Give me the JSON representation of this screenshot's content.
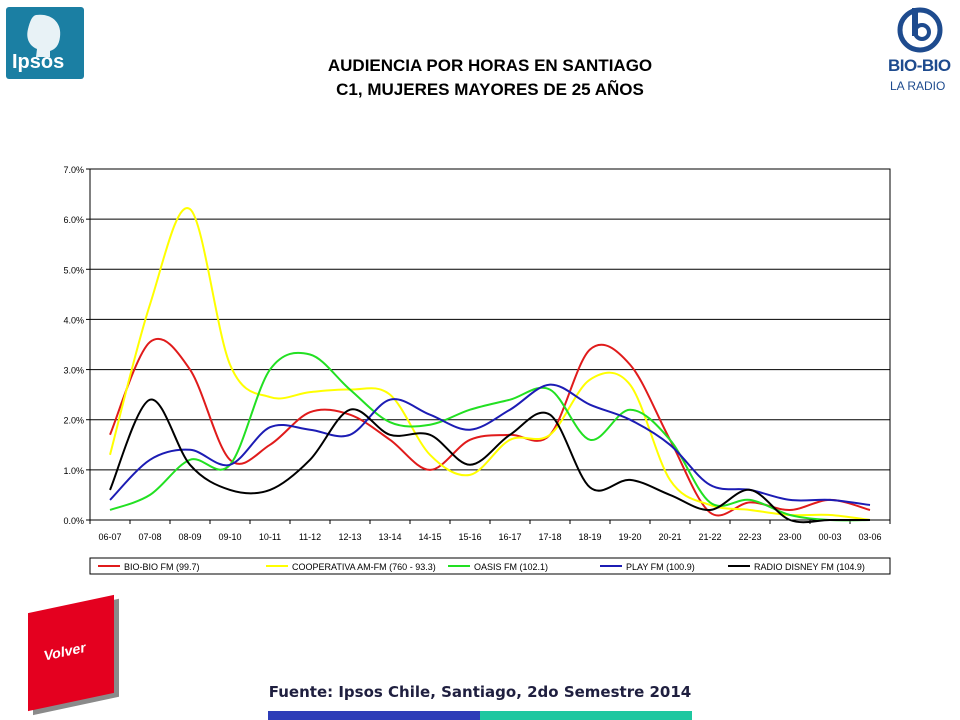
{
  "logos": {
    "left_brand": "Ipsos",
    "right_brand": "BIO-BIO",
    "right_sub": "LA RADIO"
  },
  "header": {
    "title_line1": "AUDIENCIA POR HORAS EN SANTIAGO",
    "title_line2": "C1, MUJERES MAYORES DE 25 AÑOS"
  },
  "chart_data": {
    "type": "line",
    "categories": [
      "06-07",
      "07-08",
      "08-09",
      "09-10",
      "10-11",
      "11-12",
      "12-13",
      "13-14",
      "14-15",
      "15-16",
      "16-17",
      "17-18",
      "18-19",
      "19-20",
      "20-21",
      "21-22",
      "22-23",
      "23-00",
      "00-03",
      "03-06"
    ],
    "y_ticks": [
      "0.0%",
      "1.0%",
      "2.0%",
      "3.0%",
      "4.0%",
      "5.0%",
      "6.0%",
      "7.0%"
    ],
    "ylim": [
      0,
      7
    ],
    "y_unit": "%",
    "grid": true,
    "legend_position": "bottom",
    "series": [
      {
        "name": "BIO-BIO FM (99.7)",
        "color": "#e01b1b",
        "values": [
          1.7,
          3.55,
          3.0,
          1.2,
          1.5,
          2.15,
          2.1,
          1.6,
          1.0,
          1.6,
          1.7,
          1.7,
          3.4,
          3.1,
          1.6,
          0.15,
          0.35,
          0.2,
          0.4,
          0.2
        ]
      },
      {
        "name": "COOPERATIVA AM-FM (760 - 93.3)",
        "color": "#ffff00",
        "values": [
          1.3,
          4.3,
          6.2,
          3.1,
          2.45,
          2.55,
          2.6,
          2.5,
          1.3,
          0.9,
          1.6,
          1.7,
          2.8,
          2.7,
          0.8,
          0.3,
          0.2,
          0.1,
          0.1,
          0.0
        ]
      },
      {
        "name": "OASIS FM (102.1)",
        "color": "#22e022",
        "values": [
          0.2,
          0.5,
          1.2,
          1.1,
          3.0,
          3.3,
          2.6,
          1.95,
          1.9,
          2.2,
          2.4,
          2.6,
          1.6,
          2.2,
          1.6,
          0.35,
          0.4,
          0.1,
          0.0,
          0.0
        ]
      },
      {
        "name": "PLAY FM (100.9)",
        "color": "#1c1cb4",
        "values": [
          0.4,
          1.2,
          1.4,
          1.1,
          1.85,
          1.8,
          1.7,
          2.4,
          2.1,
          1.8,
          2.2,
          2.7,
          2.3,
          2.0,
          1.5,
          0.7,
          0.6,
          0.4,
          0.4,
          0.3
        ]
      },
      {
        "name": "RADIO DISNEY FM (104.9)",
        "color": "#000000",
        "values": [
          0.6,
          2.4,
          1.1,
          0.6,
          0.6,
          1.2,
          2.2,
          1.7,
          1.7,
          1.1,
          1.7,
          2.1,
          0.65,
          0.8,
          0.5,
          0.2,
          0.6,
          0.0,
          0.0,
          0.0
        ]
      }
    ]
  },
  "footer": {
    "source": "Fuente: Ipsos Chile, Santiago, 2do Semestre 2014"
  },
  "nav": {
    "back_label": "Volver"
  }
}
